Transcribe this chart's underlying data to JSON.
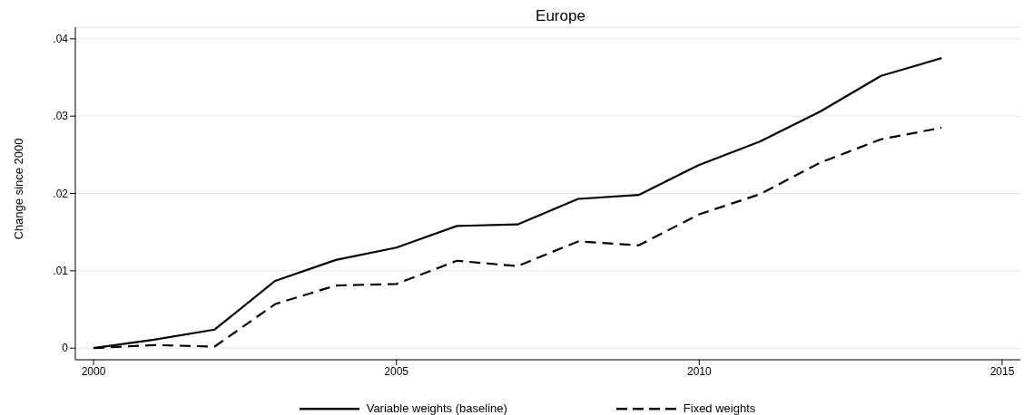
{
  "chart_data": {
    "type": "line",
    "title": "Europe",
    "ylabel": "Change since 2000",
    "x": [
      2000,
      2001,
      2002,
      2003,
      2004,
      2005,
      2006,
      2007,
      2008,
      2009,
      2010,
      2011,
      2012,
      2013,
      2014
    ],
    "series": [
      {
        "name": "Variable weights (baseline)",
        "color": "#000000",
        "line_style": "solid",
        "values": [
          0,
          0.0011,
          0.0024,
          0.0087,
          0.0114,
          0.013,
          0.0158,
          0.016,
          0.0193,
          0.0198,
          0.0237,
          0.0267,
          0.0306,
          0.0352,
          0.0375
        ]
      },
      {
        "name": "Fixed weights",
        "color": "#000000",
        "line_style": "dashed",
        "values": [
          0,
          0.0004,
          0.0002,
          0.0057,
          0.0081,
          0.0083,
          0.0113,
          0.0106,
          0.0138,
          0.0133,
          0.0173,
          0.0199,
          0.024,
          0.027,
          0.0285
        ]
      }
    ],
    "xlim": [
      1999.7,
      2015.3
    ],
    "xticks": [
      2000,
      2005,
      2010,
      2015
    ],
    "ylim": [
      -0.0015,
      0.0415
    ],
    "yticks": [
      {
        "value": 0,
        "label": "0"
      },
      {
        "value": 0.01,
        "label": ".01"
      },
      {
        "value": 0.02,
        "label": ".02"
      },
      {
        "value": 0.03,
        "label": ".03"
      },
      {
        "value": 0.04,
        "label": ".04"
      }
    ],
    "grid": "y",
    "legend": "bottom",
    "marker": "none"
  }
}
